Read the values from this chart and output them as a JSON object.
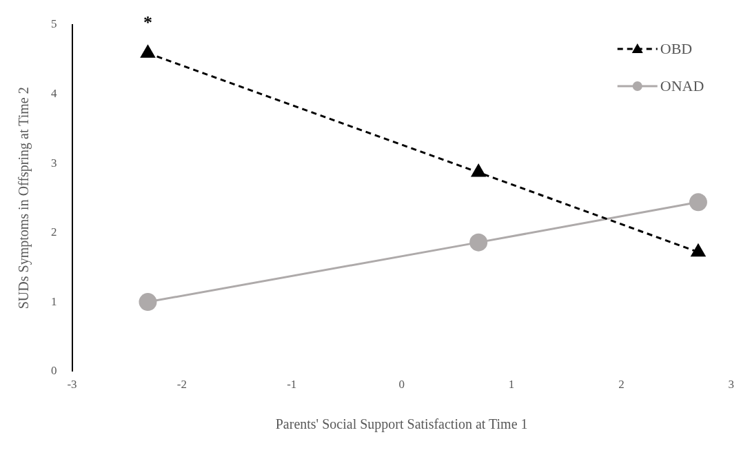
{
  "chart_data": {
    "type": "line",
    "xlabel": "Parents' Social Support Satisfaction at Time 1",
    "ylabel": "SUDs Symptoms in Offspring at Time 2",
    "x": [
      -2.31,
      0.7,
      2.7
    ],
    "series": [
      {
        "name": "OBD",
        "color": "#000000",
        "values": [
          4.59,
          2.87,
          1.72
        ],
        "marker": "triangle",
        "line_style": "dashed"
      },
      {
        "name": "ONAD",
        "color": "#aeaaaa",
        "values": [
          1.0,
          1.86,
          2.44
        ],
        "marker": "circle",
        "line_style": "solid"
      }
    ],
    "xlim": [
      -3,
      3
    ],
    "xticks": [
      -3,
      -2,
      -1,
      0,
      1,
      2,
      3
    ],
    "ylim": [
      0,
      5
    ],
    "yticks": [
      0,
      1,
      2,
      3,
      4,
      5
    ],
    "grid": false,
    "legend": "top right",
    "annotations": [
      "*"
    ]
  }
}
